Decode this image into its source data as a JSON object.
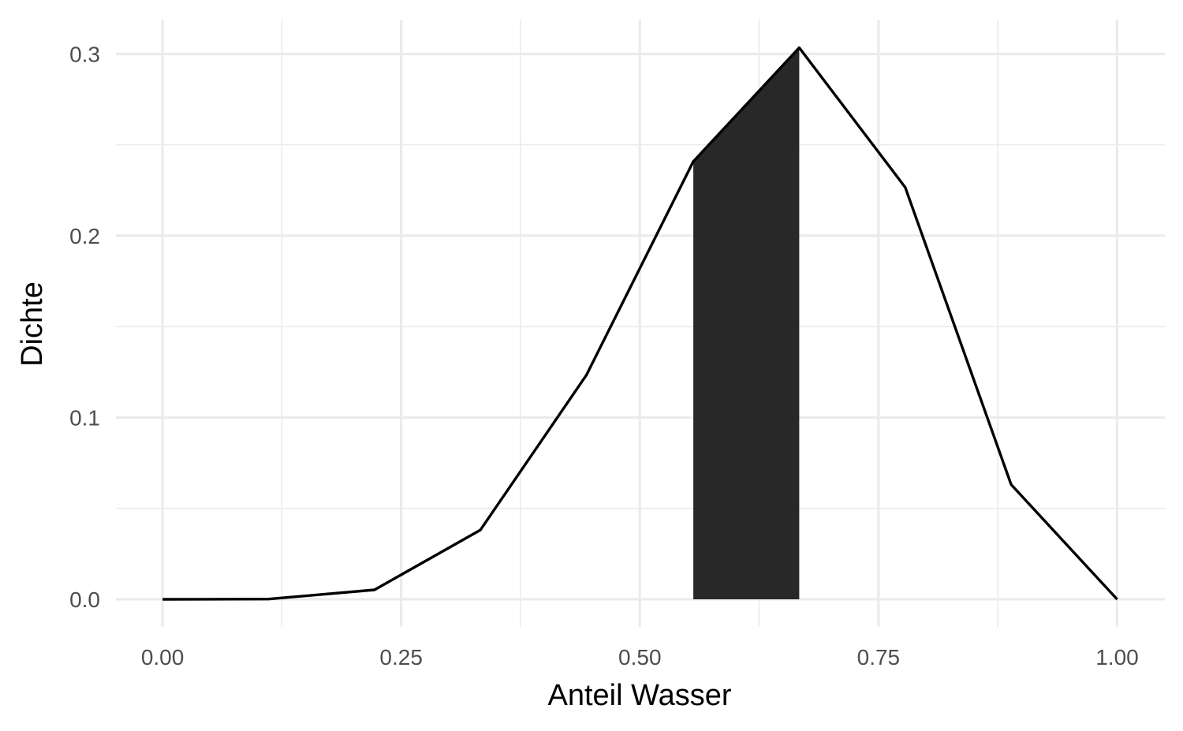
{
  "chart_data": {
    "type": "line",
    "title": "",
    "xlabel": "Anteil Wasser",
    "ylabel": "Dichte",
    "xlim": [
      -0.0488,
      1.05
    ],
    "ylim": [
      -0.0152,
      0.3188
    ],
    "x_ticks": [
      0.0,
      0.25,
      0.5,
      0.75,
      1.0
    ],
    "x_tick_labels": [
      "0.00",
      "0.25",
      "0.50",
      "0.75",
      "1.00"
    ],
    "y_ticks": [
      0.0,
      0.1,
      0.2,
      0.3
    ],
    "y_tick_labels": [
      "0.0",
      "0.1",
      "0.2",
      "0.3"
    ],
    "grid": true,
    "series": [
      {
        "x": [
          0.0,
          0.111,
          0.222,
          0.333,
          0.444,
          0.556,
          0.667,
          0.778,
          0.889,
          1.0
        ],
        "y": [
          0.0,
          0.0001,
          0.0052,
          0.0381,
          0.1233,
          0.2408,
          0.3034,
          0.2266,
          0.0631,
          0.0
        ]
      }
    ],
    "highlight_interval": {
      "x": [
        0.556,
        0.667
      ],
      "color": "#282828"
    },
    "colors": {
      "line": "#000000",
      "grid": "#ebebeb",
      "fill": "#282828"
    }
  }
}
